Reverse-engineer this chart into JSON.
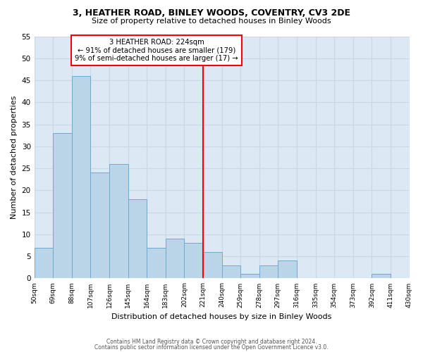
{
  "title": "3, HEATHER ROAD, BINLEY WOODS, COVENTRY, CV3 2DE",
  "subtitle": "Size of property relative to detached houses in Binley Woods",
  "xlabel": "Distribution of detached houses by size in Binley Woods",
  "ylabel": "Number of detached properties",
  "bin_edges": [
    50,
    69,
    88,
    107,
    126,
    145,
    164,
    183,
    202,
    221,
    240,
    259,
    278,
    297,
    316,
    335,
    354,
    373,
    392,
    411,
    430
  ],
  "counts": [
    7,
    33,
    46,
    24,
    26,
    18,
    7,
    9,
    8,
    6,
    3,
    1,
    3,
    4,
    0,
    0,
    0,
    0,
    1,
    0
  ],
  "bar_color": "#bad4e8",
  "bar_edgecolor": "#6fa8d0",
  "reference_line_x": 221,
  "reference_line_color": "red",
  "annotation_text": "3 HEATHER ROAD: 224sqm\n← 91% of detached houses are smaller (179)\n9% of semi-detached houses are larger (17) →",
  "annotation_box_edgecolor": "red",
  "annotation_box_facecolor": "white",
  "ylim": [
    0,
    55
  ],
  "yticks": [
    0,
    5,
    10,
    15,
    20,
    25,
    30,
    35,
    40,
    45,
    50,
    55
  ],
  "grid_color": "#c8d8e8",
  "footer_line1": "Contains HM Land Registry data © Crown copyright and database right 2024.",
  "footer_line2": "Contains public sector information licensed under the Open Government Licence v3.0.",
  "tick_labels": [
    "50sqm",
    "69sqm",
    "88sqm",
    "107sqm",
    "126sqm",
    "145sqm",
    "164sqm",
    "183sqm",
    "202sqm",
    "221sqm",
    "240sqm",
    "259sqm",
    "278sqm",
    "297sqm",
    "316sqm",
    "335sqm",
    "354sqm",
    "373sqm",
    "392sqm",
    "411sqm",
    "430sqm"
  ],
  "background_color": "#dce8f4"
}
